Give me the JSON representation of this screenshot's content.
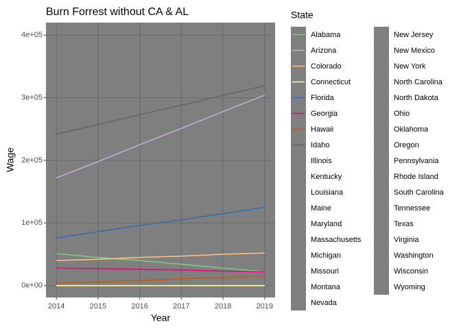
{
  "chart_data": {
    "type": "line",
    "title": "Burn Forrest without CA & AL",
    "x_label": "Year",
    "y_label": "Wage",
    "legend_title": "State",
    "x": [
      2014,
      2015,
      2016,
      2017,
      2018,
      2019
    ],
    "xlim": [
      2013.75,
      2019.25
    ],
    "xticks": [
      2014,
      2015,
      2016,
      2017,
      2018,
      2019
    ],
    "ylim": [
      -19000,
      420000
    ],
    "yticks": [
      {
        "value": 0,
        "label": "0e+00"
      },
      {
        "value": 100000,
        "label": "1e+05"
      },
      {
        "value": 200000,
        "label": "2e+05"
      },
      {
        "value": 300000,
        "label": "3e+05"
      },
      {
        "value": 400000,
        "label": "4e+05"
      }
    ],
    "grid": true,
    "series": [
      {
        "name": "Alabama",
        "color": "#7FC97F",
        "values": [
          51000,
          45000,
          40000,
          34000,
          28000,
          22000
        ]
      },
      {
        "name": "Arizona",
        "color": "#BEAED4",
        "values": [
          172000,
          198000,
          225000,
          251000,
          278000,
          304000
        ]
      },
      {
        "name": "Colorado",
        "color": "#FDC086",
        "values": [
          40000,
          42000,
          45000,
          47000,
          50000,
          52000
        ]
      },
      {
        "name": "Connecticut",
        "color": "#FFFF99",
        "values": [
          0,
          0,
          0,
          0,
          0,
          0
        ]
      },
      {
        "name": "Florida",
        "color": "#386CB0",
        "values": [
          76000,
          86000,
          96000,
          105000,
          115000,
          125000
        ]
      },
      {
        "name": "Georgia",
        "color": "#F0027F",
        "values": [
          28000,
          27000,
          26000,
          25000,
          23000,
          22000
        ]
      },
      {
        "name": "Hawaii",
        "color": "#BF5B17",
        "values": [
          4000,
          6000,
          8000,
          11000,
          13000,
          15000
        ]
      },
      {
        "name": "Idaho",
        "color": "#666666",
        "values": [
          242000,
          257000,
          273000,
          288000,
          304000,
          319000
        ]
      },
      {
        "name": "Illinois",
        "color": "#7F7F7F",
        "values": [
          null,
          null,
          null,
          null,
          null,
          null
        ]
      },
      {
        "name": "Kentucky",
        "color": "#7F7F7F",
        "values": [
          null,
          null,
          null,
          null,
          null,
          null
        ]
      },
      {
        "name": "Louisiana",
        "color": "#7F7F7F",
        "values": [
          null,
          null,
          null,
          null,
          null,
          null
        ]
      },
      {
        "name": "Maine",
        "color": "#7F7F7F",
        "values": [
          null,
          null,
          null,
          null,
          null,
          null
        ]
      },
      {
        "name": "Maryland",
        "color": "#7F7F7F",
        "values": [
          null,
          null,
          null,
          null,
          null,
          null
        ]
      },
      {
        "name": "Massachusetts",
        "color": "#7F7F7F",
        "values": [
          null,
          null,
          null,
          null,
          null,
          null
        ]
      },
      {
        "name": "Michigan",
        "color": "#7F7F7F",
        "values": [
          null,
          null,
          null,
          null,
          null,
          null
        ]
      },
      {
        "name": "Missouri",
        "color": "#7F7F7F",
        "values": [
          null,
          null,
          null,
          null,
          null,
          null
        ]
      },
      {
        "name": "Montana",
        "color": "#7F7F7F",
        "values": [
          null,
          null,
          null,
          null,
          null,
          null
        ]
      },
      {
        "name": "Nevada",
        "color": "#7F7F7F",
        "values": [
          null,
          null,
          null,
          null,
          null,
          null
        ]
      },
      {
        "name": "New Jersey",
        "color": "#7F7F7F",
        "values": [
          null,
          null,
          null,
          null,
          null,
          null
        ]
      },
      {
        "name": "New Mexico",
        "color": "#7F7F7F",
        "values": [
          null,
          null,
          null,
          null,
          null,
          null
        ]
      },
      {
        "name": "New York",
        "color": "#7F7F7F",
        "values": [
          null,
          null,
          null,
          null,
          null,
          null
        ]
      },
      {
        "name": "North Carolina",
        "color": "#7F7F7F",
        "values": [
          null,
          null,
          null,
          null,
          null,
          null
        ]
      },
      {
        "name": "North Dakota",
        "color": "#7F7F7F",
        "values": [
          null,
          null,
          null,
          null,
          null,
          null
        ]
      },
      {
        "name": "Ohio",
        "color": "#7F7F7F",
        "values": [
          null,
          null,
          null,
          null,
          null,
          null
        ]
      },
      {
        "name": "Oklahoma",
        "color": "#7F7F7F",
        "values": [
          null,
          null,
          null,
          null,
          null,
          null
        ]
      },
      {
        "name": "Oregon",
        "color": "#7F7F7F",
        "values": [
          null,
          null,
          null,
          null,
          null,
          null
        ]
      },
      {
        "name": "Pennsylvania",
        "color": "#7F7F7F",
        "values": [
          null,
          null,
          null,
          null,
          null,
          null
        ]
      },
      {
        "name": "Rhode Island",
        "color": "#7F7F7F",
        "values": [
          null,
          null,
          null,
          null,
          null,
          null
        ]
      },
      {
        "name": "South Carolina",
        "color": "#7F7F7F",
        "values": [
          null,
          null,
          null,
          null,
          null,
          null
        ]
      },
      {
        "name": "Tennessee",
        "color": "#7F7F7F",
        "values": [
          null,
          null,
          null,
          null,
          null,
          null
        ]
      },
      {
        "name": "Texas",
        "color": "#7F7F7F",
        "values": [
          null,
          null,
          null,
          null,
          null,
          null
        ]
      },
      {
        "name": "Virginia",
        "color": "#7F7F7F",
        "values": [
          null,
          null,
          null,
          null,
          null,
          null
        ]
      },
      {
        "name": "Washington",
        "color": "#7F7F7F",
        "values": [
          null,
          null,
          null,
          null,
          null,
          null
        ]
      },
      {
        "name": "Wisconsin",
        "color": "#7F7F7F",
        "values": [
          null,
          null,
          null,
          null,
          null,
          null
        ]
      },
      {
        "name": "Wyoming",
        "color": "#7F7F7F",
        "values": [
          null,
          null,
          null,
          null,
          null,
          null
        ]
      }
    ]
  }
}
